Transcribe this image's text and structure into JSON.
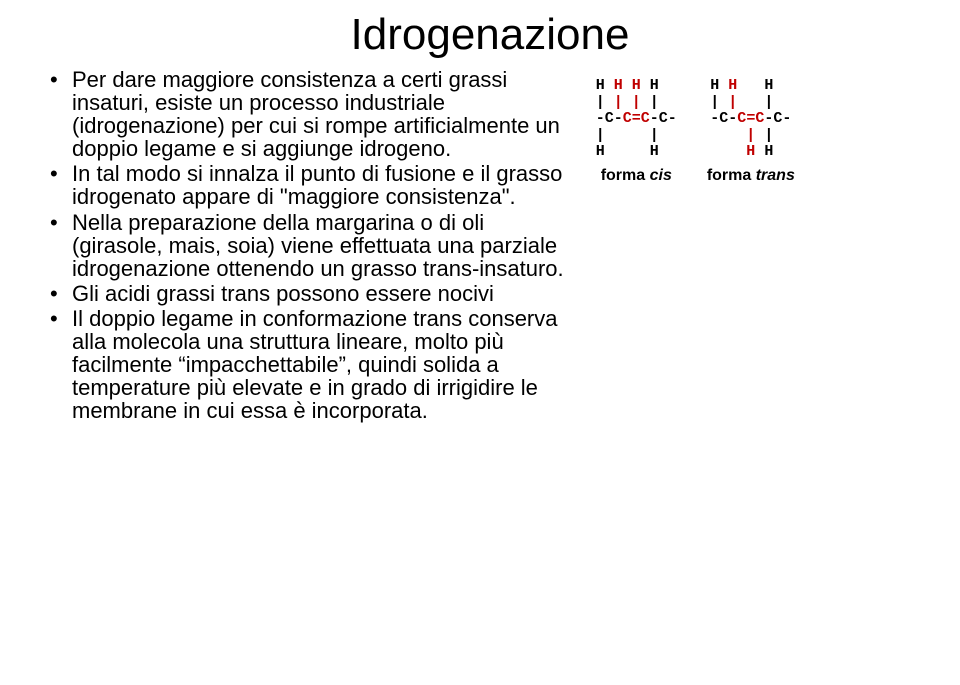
{
  "title": "Idrogenazione",
  "bullets": [
    "Per dare maggiore consistenza a certi grassi insaturi, esiste un processo industriale (idrogenazione) per cui si rompe artificialmente un doppio legame e si aggiunge idrogeno.",
    "In tal modo si innalza il punto di fusione e il grasso idrogenato appare di \"maggiore consistenza\".",
    "Nella preparazione della margarina o di oli (girasole, mais, soia) viene effettuata una parziale idrogenazione ottenendo un grasso trans-insaturo.",
    "Gli acidi grassi trans possono essere nocivi",
    "Il doppio legame in conformazione trans conserva alla molecola una struttura lineare, molto più facilmente “impacchettabile”, quindi solida a temperature più elevate e in grado di irrigidire le membrane in cui essa è incorporata."
  ],
  "diagram": {
    "cis": {
      "label_prefix": "forma ",
      "label_ital": "cis",
      "lines": [
        [
          [
            "H ",
            "blk"
          ],
          [
            "H ",
            "red"
          ],
          [
            "H ",
            "red"
          ],
          [
            "H",
            "blk"
          ]
        ],
        [
          [
            "| ",
            "blk"
          ],
          [
            "| ",
            "red"
          ],
          [
            "| ",
            "red"
          ],
          [
            "|",
            "blk"
          ]
        ],
        [
          [
            "-C-",
            "blk"
          ],
          [
            "C",
            "red"
          ],
          [
            "=",
            "red"
          ],
          [
            "C",
            "red"
          ],
          [
            "-C-",
            "blk"
          ]
        ],
        [
          [
            "|     |",
            "blk"
          ]
        ],
        [
          [
            "H     H",
            "blk"
          ]
        ]
      ]
    },
    "trans": {
      "label_prefix": "forma ",
      "label_ital": "trans",
      "lines": [
        [
          [
            "H ",
            "blk"
          ],
          [
            "H   ",
            "red"
          ],
          [
            "H",
            "blk"
          ]
        ],
        [
          [
            "| ",
            "blk"
          ],
          [
            "|   ",
            "red"
          ],
          [
            "|",
            "blk"
          ]
        ],
        [
          [
            "-C-",
            "blk"
          ],
          [
            "C",
            "red"
          ],
          [
            "=",
            "red"
          ],
          [
            "C",
            "red"
          ],
          [
            "-C-",
            "blk"
          ]
        ],
        [
          [
            "    ",
            "blk"
          ],
          [
            "| ",
            "red"
          ],
          [
            "|",
            "blk"
          ]
        ],
        [
          [
            "    ",
            "blk"
          ],
          [
            "H ",
            "red"
          ],
          [
            "H",
            "blk"
          ]
        ]
      ]
    }
  },
  "colors": {
    "text": "#000000",
    "highlight": "#c00000",
    "background": "#ffffff"
  }
}
